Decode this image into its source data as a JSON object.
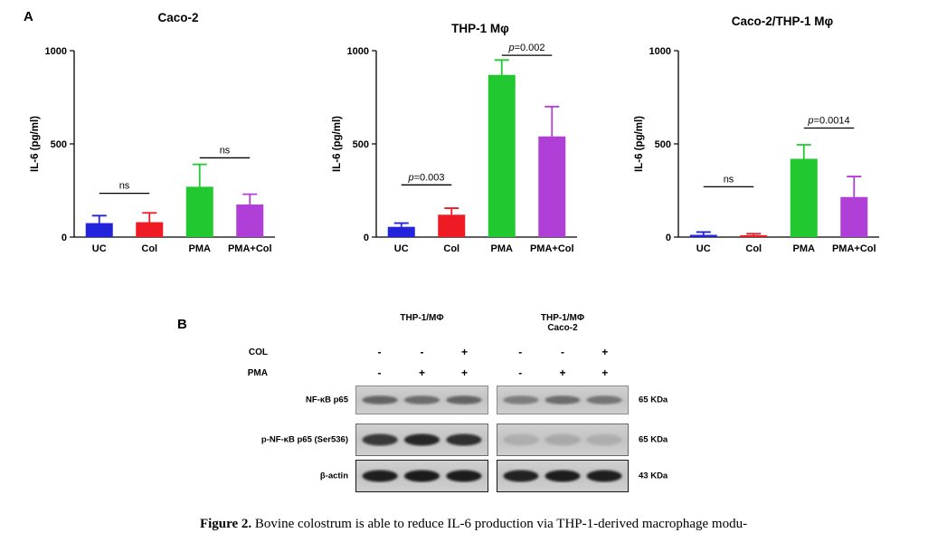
{
  "panel_a": {
    "label": "A"
  },
  "chart_data": [
    {
      "type": "bar",
      "title": "Caco-2",
      "ylabel": "IL-6 (pg/ml)",
      "ylim": [
        0,
        1000
      ],
      "yticks": [
        0,
        500,
        1000
      ],
      "categories": [
        "UC",
        "Col",
        "PMA",
        "PMA+Col"
      ],
      "values": [
        75,
        80,
        270,
        175
      ],
      "errors": [
        40,
        50,
        120,
        55
      ],
      "colors": [
        "#2323dd",
        "#ee1b24",
        "#21c82f",
        "#b03fd8"
      ],
      "annotations": [
        {
          "label": "ns",
          "from": 0,
          "to": 1,
          "y": 235
        },
        {
          "label": "ns",
          "from": 2,
          "to": 3,
          "y": 425
        }
      ]
    },
    {
      "type": "bar",
      "title": "THP-1 Mφ",
      "ylabel": "IL-6 (pg/ml)",
      "ylim": [
        0,
        1000
      ],
      "yticks": [
        0,
        500,
        1000
      ],
      "categories": [
        "UC",
        "Col",
        "PMA",
        "PMA+Col"
      ],
      "values": [
        55,
        120,
        870,
        540
      ],
      "errors": [
        20,
        35,
        80,
        160
      ],
      "colors": [
        "#2323dd",
        "#ee1b24",
        "#21c82f",
        "#b03fd8"
      ],
      "annotations": [
        {
          "label": "p=0.003",
          "from": 0,
          "to": 1,
          "y": 280
        },
        {
          "label": "p=0.002",
          "from": 2,
          "to": 3,
          "y": 975
        }
      ]
    },
    {
      "type": "bar",
      "title": "Caco-2/THP-1 Mφ",
      "ylabel": "IL-6 (pg/ml)",
      "ylim": [
        0,
        1000
      ],
      "yticks": [
        0,
        500,
        1000
      ],
      "categories": [
        "UC",
        "Col",
        "PMA",
        "PMA+Col"
      ],
      "values": [
        12,
        10,
        420,
        215
      ],
      "errors": [
        15,
        8,
        75,
        110
      ],
      "colors": [
        "#2323dd",
        "#ee1b24",
        "#21c82f",
        "#b03fd8"
      ],
      "annotations": [
        {
          "label": "ns",
          "from": 0,
          "to": 1,
          "y": 270
        },
        {
          "label": "p=0.0014",
          "from": 2,
          "to": 3,
          "y": 585
        }
      ]
    }
  ],
  "panel_b": {
    "label": "B",
    "groups": [
      {
        "line1": "THP-1/MΦ",
        "line2": ""
      },
      {
        "line1": "THP-1/MΦ",
        "line2": "Caco-2"
      }
    ],
    "treatments": [
      {
        "label": "COL",
        "left": [
          "-",
          "-",
          "+"
        ],
        "right": [
          "-",
          "-",
          "+"
        ]
      },
      {
        "label": "PMA",
        "left": [
          "-",
          "+",
          "+"
        ],
        "right": [
          "-",
          "+",
          "+"
        ]
      }
    ],
    "blots": [
      {
        "label": "NF-κB p65",
        "kda": "65 KDa",
        "left_bands": [
          0.55,
          0.5,
          0.55
        ],
        "right_bands": [
          0.4,
          0.5,
          0.45
        ]
      },
      {
        "label": "p-NF-κB p65 (Ser536)",
        "kda": "65 KDa",
        "left_bands": [
          0.8,
          0.9,
          0.85
        ],
        "right_bands": [
          0.12,
          0.15,
          0.12
        ]
      },
      {
        "label": "β-actin",
        "kda": "43 KDa",
        "left_bands": [
          0.95,
          0.97,
          0.96
        ],
        "right_bands": [
          0.93,
          0.96,
          0.95
        ]
      }
    ]
  },
  "caption": {
    "label": "Figure 2.",
    "text": "Bovine colostrum is able to reduce IL-6 production via THP-1-derived macrophage modu-"
  }
}
